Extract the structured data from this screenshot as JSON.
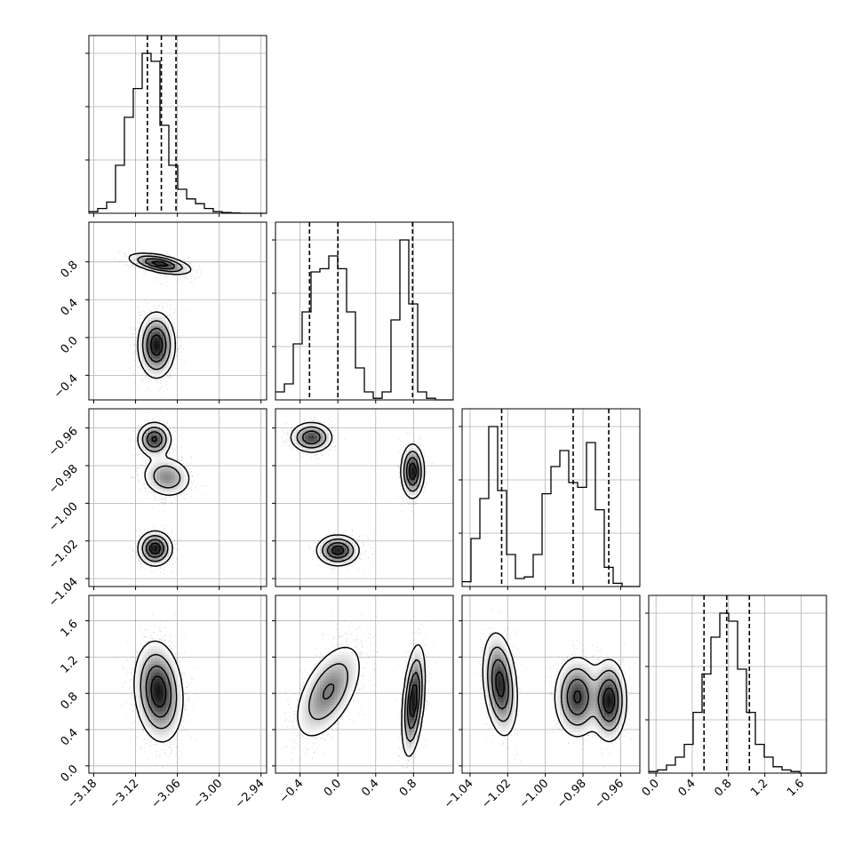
{
  "chart_data": {
    "type": "corner",
    "grid": true,
    "variables": [
      {
        "ticks": [
          "−3.18",
          "−3.12",
          "−3.06",
          "−3.00",
          "−2.94"
        ],
        "tick_values": [
          -3.18,
          -3.12,
          -3.06,
          -3.0,
          -2.94
        ],
        "range": [
          -3.187,
          -2.932
        ],
        "quantiles": [
          -3.103,
          -3.083,
          -3.062
        ],
        "hist": {
          "bin_start": -3.187,
          "bin_width": 0.01275,
          "counts": [
            1,
            3,
            7,
            30,
            60,
            78,
            100,
            95,
            55,
            30,
            15,
            9,
            6,
            3,
            1,
            0.5,
            0.2,
            0,
            0,
            0
          ]
        }
      },
      {
        "ticks": [
          "−0.4",
          "0.0",
          "0.4",
          "0.8"
        ],
        "tick_values": [
          -0.4,
          0.0,
          0.4,
          0.8
        ],
        "range": [
          -0.66,
          1.22
        ],
        "quantiles": [
          -0.3,
          0.0,
          0.79
        ],
        "hist": {
          "bin_start": -0.66,
          "bin_width": 0.094,
          "counts": [
            5,
            10,
            35,
            55,
            80,
            82,
            90,
            82,
            55,
            20,
            5,
            1,
            5,
            50,
            100,
            60,
            5,
            1,
            0,
            0
          ]
        }
      },
      {
        "ticks": [
          "−1.04",
          "−1.02",
          "−1.00",
          "−0.98",
          "−0.96"
        ],
        "tick_values": [
          -1.04,
          -1.02,
          -1.0,
          -0.98,
          -0.96
        ],
        "range": [
          -1.0442,
          -0.9498
        ],
        "quantiles": [
          -1.0232,
          -0.9852,
          -0.9663
        ],
        "hist": {
          "bin_start": -1.0442,
          "bin_width": 0.00472,
          "counts": [
            3,
            30,
            55,
            100,
            60,
            20,
            5,
            6,
            20,
            58,
            75,
            85,
            65,
            62,
            90,
            48,
            12,
            2,
            0,
            0
          ]
        }
      },
      {
        "ticks": [
          "0.0",
          "0.4",
          "0.8",
          "1.2",
          "1.6"
        ],
        "tick_values": [
          0.0,
          0.4,
          0.8,
          1.2,
          1.6
        ],
        "range": [
          -0.08,
          1.88
        ],
        "quantiles": [
          0.53,
          0.78,
          1.03
        ],
        "hist": {
          "bin_start": -0.08,
          "bin_width": 0.098,
          "counts": [
            1,
            2,
            5,
            10,
            18,
            38,
            62,
            85,
            100,
            95,
            65,
            38,
            18,
            10,
            4,
            2,
            1,
            0,
            0,
            0
          ]
        }
      }
    ],
    "components": {
      "1_0": [
        {
          "mx": -3.085,
          "my": 0.78,
          "sx": 0.022,
          "sy": 0.055,
          "rho": -0.55,
          "w": 0.3
        },
        {
          "mx": -3.09,
          "my": -0.08,
          "sx": 0.013,
          "sy": 0.17,
          "rho": 0.0,
          "w": 0.7
        }
      ],
      "2_0": [
        {
          "mx": -3.093,
          "my": -0.966,
          "sx": 0.012,
          "sy": 0.0045,
          "rho": 0.0,
          "w": 0.3
        },
        {
          "mx": -3.075,
          "my": -0.986,
          "sx": 0.018,
          "sy": 0.0055,
          "rho": -0.1,
          "w": 0.35
        },
        {
          "mx": -3.092,
          "my": -1.024,
          "sx": 0.012,
          "sy": 0.0045,
          "rho": 0.0,
          "w": 0.35
        }
      ],
      "2_1": [
        {
          "mx": -0.28,
          "my": -0.965,
          "sx": 0.11,
          "sy": 0.004,
          "rho": 0.0,
          "w": 0.3
        },
        {
          "mx": 0.0,
          "my": -1.025,
          "sx": 0.11,
          "sy": 0.004,
          "rho": 0.0,
          "w": 0.35
        },
        {
          "mx": 0.79,
          "my": -0.983,
          "sx": 0.06,
          "sy": 0.007,
          "rho": 0.0,
          "w": 0.35
        }
      ],
      "3_0": [
        {
          "mx": -3.087,
          "my": 0.82,
          "sx": 0.017,
          "sy": 0.27,
          "rho": -0.15,
          "w": 1.0
        }
      ],
      "3_1": [
        {
          "mx": -0.1,
          "my": 0.82,
          "sx": 0.18,
          "sy": 0.27,
          "rho": 0.55,
          "w": 0.6
        },
        {
          "mx": 0.8,
          "my": 0.72,
          "sx": 0.06,
          "sy": 0.3,
          "rho": 0.4,
          "w": 0.4
        }
      ],
      "3_2": [
        {
          "mx": -1.024,
          "my": 0.9,
          "sx": 0.0045,
          "sy": 0.28,
          "rho": -0.25,
          "w": 0.35
        },
        {
          "mx": -0.983,
          "my": 0.76,
          "sx": 0.006,
          "sy": 0.22,
          "rho": 0.0,
          "w": 0.35
        },
        {
          "mx": -0.966,
          "my": 0.72,
          "sx": 0.0045,
          "sy": 0.22,
          "rho": 0.0,
          "w": 0.3
        }
      ]
    }
  }
}
